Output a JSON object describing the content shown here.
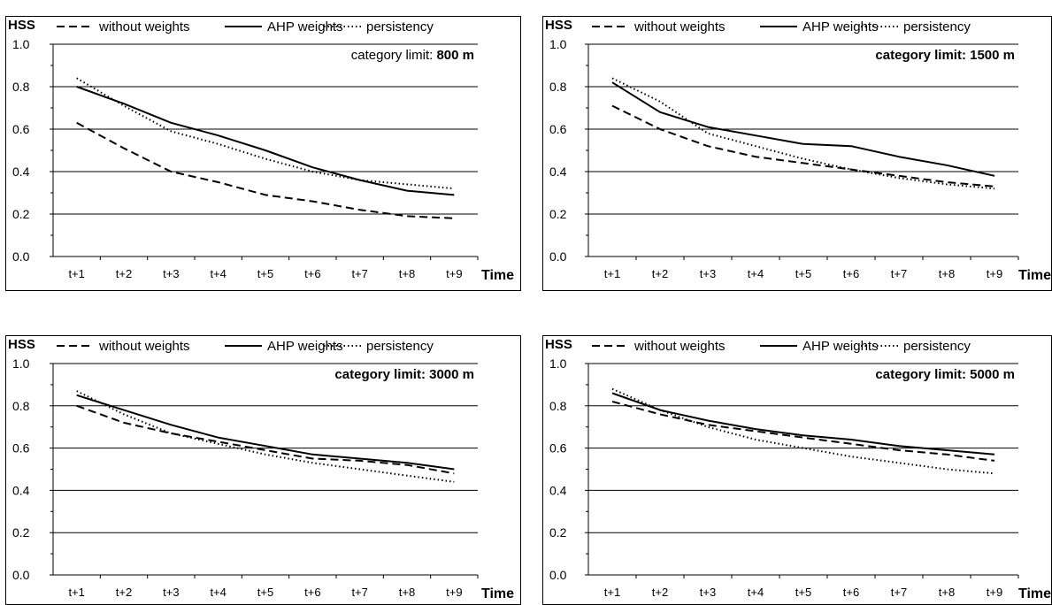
{
  "chart_data": [
    {
      "type": "line",
      "ylabel": "HSS",
      "xlabel": "Time",
      "annotation_prefix": "category limit: ",
      "annotation_value": "800 m",
      "categories": [
        "t+1",
        "t+2",
        "t+3",
        "t+4",
        "t+5",
        "t+6",
        "t+7",
        "t+8",
        "t+9"
      ],
      "ylim": [
        0,
        1.0
      ],
      "yticks": [
        "0.0",
        "0.2",
        "0.4",
        "0.6",
        "0.8",
        "1.0"
      ],
      "grid": true,
      "legend_position": "top",
      "series": [
        {
          "name": "without weights",
          "style": "dashed",
          "values": [
            0.63,
            0.51,
            0.4,
            0.35,
            0.29,
            0.26,
            0.22,
            0.19,
            0.18
          ]
        },
        {
          "name": "AHP weights",
          "style": "solid",
          "values": [
            0.8,
            0.72,
            0.63,
            0.57,
            0.5,
            0.42,
            0.36,
            0.31,
            0.29
          ]
        },
        {
          "name": "persistency",
          "style": "dotted",
          "values": [
            0.84,
            0.71,
            0.59,
            0.53,
            0.46,
            0.4,
            0.36,
            0.34,
            0.32
          ]
        }
      ]
    },
    {
      "type": "line",
      "ylabel": "HSS",
      "xlabel": "Time",
      "annotation_prefix": "category limit: ",
      "annotation_value": "1500 m",
      "categories": [
        "t+1",
        "t+2",
        "t+3",
        "t+4",
        "t+5",
        "t+6",
        "t+7",
        "t+8",
        "t+9"
      ],
      "ylim": [
        0,
        1.0
      ],
      "yticks": [
        "0.0",
        "0.2",
        "0.4",
        "0.6",
        "0.8",
        "1.0"
      ],
      "grid": true,
      "legend_position": "top",
      "series": [
        {
          "name": "without weights",
          "style": "dashed",
          "values": [
            0.71,
            0.6,
            0.52,
            0.47,
            0.44,
            0.41,
            0.38,
            0.35,
            0.33
          ]
        },
        {
          "name": "AHP weights",
          "style": "solid",
          "values": [
            0.82,
            0.68,
            0.61,
            0.57,
            0.53,
            0.52,
            0.47,
            0.43,
            0.38
          ]
        },
        {
          "name": "persistency",
          "style": "dotted",
          "values": [
            0.84,
            0.73,
            0.58,
            0.52,
            0.46,
            0.41,
            0.37,
            0.34,
            0.32
          ]
        }
      ]
    },
    {
      "type": "line",
      "ylabel": "HSS",
      "xlabel": "Time",
      "annotation_prefix": "category limit: ",
      "annotation_value": "3000 m",
      "categories": [
        "t+1",
        "t+2",
        "t+3",
        "t+4",
        "t+5",
        "t+6",
        "t+7",
        "t+8",
        "t+9"
      ],
      "ylim": [
        0,
        1.0
      ],
      "yticks": [
        "0.0",
        "0.2",
        "0.4",
        "0.6",
        "0.8",
        "1.0"
      ],
      "grid": true,
      "legend_position": "top",
      "series": [
        {
          "name": "without weights",
          "style": "dashed",
          "values": [
            0.8,
            0.72,
            0.67,
            0.63,
            0.59,
            0.55,
            0.54,
            0.52,
            0.48
          ]
        },
        {
          "name": "AHP weights",
          "style": "solid",
          "values": [
            0.85,
            0.78,
            0.71,
            0.65,
            0.61,
            0.57,
            0.55,
            0.53,
            0.5
          ]
        },
        {
          "name": "persistency",
          "style": "dotted",
          "values": [
            0.87,
            0.76,
            0.67,
            0.62,
            0.57,
            0.53,
            0.5,
            0.47,
            0.44
          ]
        }
      ]
    },
    {
      "type": "line",
      "ylabel": "HSS",
      "xlabel": "Time",
      "annotation_prefix": "category limit: ",
      "annotation_value": "5000 m",
      "categories": [
        "t+1",
        "t+2",
        "t+3",
        "t+4",
        "t+5",
        "t+6",
        "t+7",
        "t+8",
        "t+9"
      ],
      "ylim": [
        0,
        1.0
      ],
      "yticks": [
        "0.0",
        "0.2",
        "0.4",
        "0.6",
        "0.8",
        "1.0"
      ],
      "grid": true,
      "legend_position": "top",
      "series": [
        {
          "name": "without weights",
          "style": "dashed",
          "values": [
            0.82,
            0.76,
            0.71,
            0.68,
            0.65,
            0.62,
            0.59,
            0.57,
            0.54
          ]
        },
        {
          "name": "AHP weights",
          "style": "solid",
          "values": [
            0.86,
            0.78,
            0.73,
            0.69,
            0.66,
            0.64,
            0.61,
            0.59,
            0.57
          ]
        },
        {
          "name": "persistency",
          "style": "dotted",
          "values": [
            0.88,
            0.78,
            0.7,
            0.64,
            0.6,
            0.56,
            0.53,
            0.5,
            0.48
          ]
        }
      ]
    }
  ]
}
